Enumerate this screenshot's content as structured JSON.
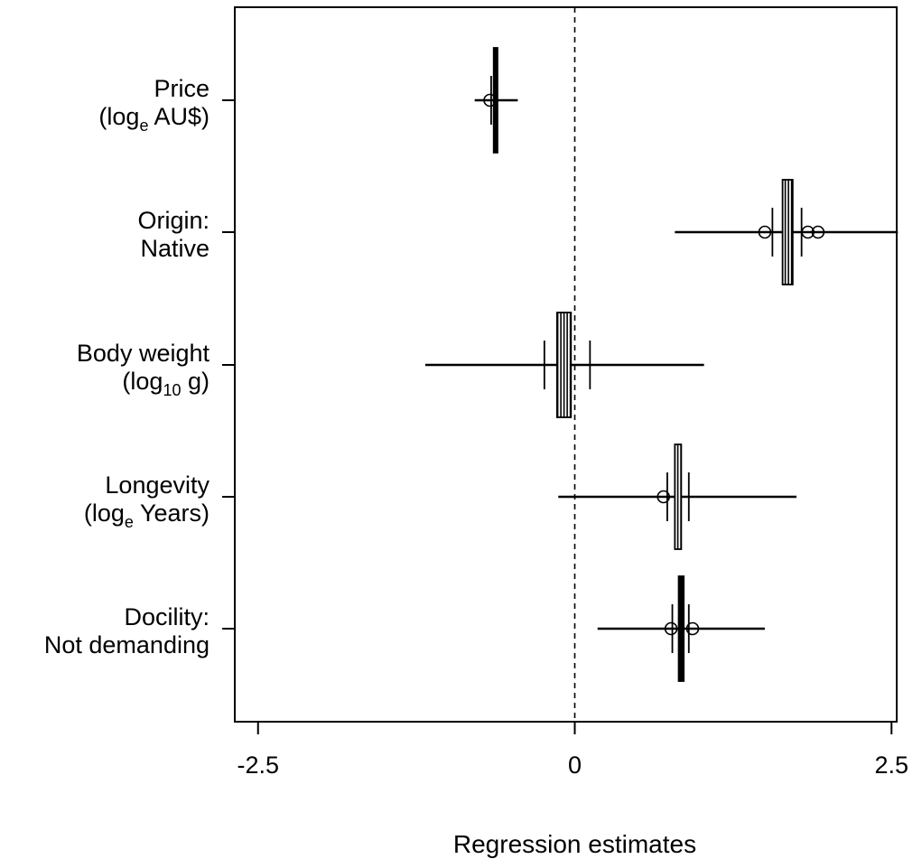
{
  "chart_data": {
    "type": "forest",
    "xlabel": "Regression estimates",
    "xlim": [
      -2.7,
      2.7
    ],
    "xticks": [
      -2.5,
      0,
      2.5
    ],
    "xtick_labels": [
      "-2.5",
      "0",
      "2.5"
    ],
    "reference_line": 0,
    "categories": [
      {
        "label_lines": [
          {
            "text": "Price",
            "sub": ""
          },
          {
            "text": "(log",
            "sub": "e",
            "after": " AU$)"
          }
        ],
        "box": [
          -0.64,
          -0.61
        ],
        "box_style": "solid",
        "short_marks": [
          -0.66,
          -0.63
        ],
        "whisker": [
          -0.79,
          -0.45
        ],
        "points": [
          -0.67
        ]
      },
      {
        "label_lines": [
          {
            "text": "Origin:",
            "sub": ""
          },
          {
            "text": "Native",
            "sub": ""
          }
        ],
        "box": [
          1.64,
          1.72
        ],
        "box_style": "hatched",
        "short_marks": [
          1.56,
          1.79
        ],
        "whisker": [
          0.79,
          2.55
        ],
        "points": [
          1.5,
          1.84,
          1.92
        ]
      },
      {
        "label_lines": [
          {
            "text": "Body weight",
            "sub": ""
          },
          {
            "text": "(log",
            "sub": "10",
            "after": " g)"
          }
        ],
        "box": [
          -0.14,
          -0.03
        ],
        "box_style": "hatched",
        "short_marks": [
          -0.24,
          0.12
        ],
        "whisker": [
          -1.18,
          1.02
        ],
        "points": []
      },
      {
        "label_lines": [
          {
            "text": "Longevity",
            "sub": ""
          },
          {
            "text": "(log",
            "sub": "e",
            "after": " Years)"
          }
        ],
        "box": [
          0.79,
          0.84
        ],
        "box_style": "hatched",
        "short_marks": [
          0.73,
          0.9
        ],
        "whisker": [
          -0.13,
          1.75
        ],
        "points": [
          0.7
        ]
      },
      {
        "label_lines": [
          {
            "text": "Docility:",
            "sub": ""
          },
          {
            "text": "Not demanding",
            "sub": ""
          }
        ],
        "box": [
          0.82,
          0.86
        ],
        "box_style": "solid",
        "short_marks": [
          0.77,
          0.9
        ],
        "whisker": [
          0.18,
          1.5
        ],
        "points": [
          0.76,
          0.93
        ]
      }
    ]
  }
}
